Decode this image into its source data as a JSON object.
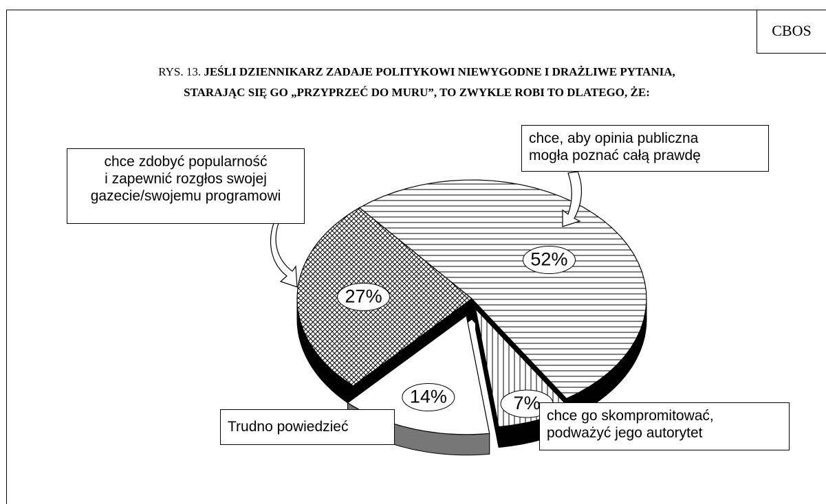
{
  "source": "CBOS",
  "chart_data": {
    "type": "pie",
    "figure_label": "RYS. 13.",
    "title": "JEŚLI DZIENNIKARZ ZADAJE POLITYKOWI NIEWYGODNE I DRAŻLIWE PYTANIA,\nSTARAJĄC SIĘ GO „PRZYPRZEĆ DO MURU”, TO ZWYKLE ROBI TO DLATEGO, ŻE:",
    "categories": [
      "chce, aby opinia publiczna\nmogła poznać całą prawdę",
      "chce go skompromitować,\npodważyć jego autorytet",
      "Trudno powiedzieć",
      "chce zdobyć popularność\ni zapewnić rozgłos swojej\ngazecie/swojemu programowi"
    ],
    "values": [
      52,
      7,
      14,
      27
    ],
    "value_labels": [
      "52%",
      "7%",
      "14%",
      "27%"
    ]
  }
}
